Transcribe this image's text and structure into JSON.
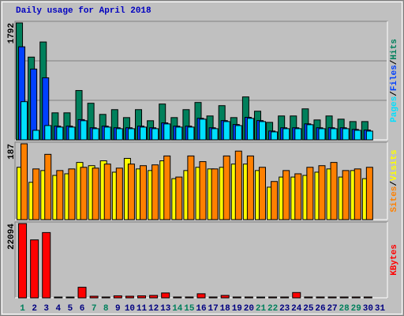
{
  "chart_data": [
    {
      "type": "bar",
      "title": "Daily usage for April 2018",
      "legend_separator": "/",
      "categories": [
        "1",
        "2",
        "3",
        "4",
        "5",
        "6",
        "7",
        "8",
        "9",
        "10",
        "11",
        "12",
        "13",
        "14",
        "15",
        "16",
        "17",
        "18",
        "19",
        "20",
        "21",
        "22",
        "23",
        "24",
        "25",
        "26",
        "27",
        "28",
        "29",
        "30",
        "31"
      ],
      "category_colors": [
        "#00805c",
        "#000080",
        "#000080",
        "#000080",
        "#000080",
        "#000080",
        "#00805c",
        "#00805c",
        "#000080",
        "#000080",
        "#000080",
        "#000080",
        "#000080",
        "#00805c",
        "#00805c",
        "#000080",
        "#000080",
        "#000080",
        "#000080",
        "#000080",
        "#00805c",
        "#00805c",
        "#000080",
        "#000080",
        "#000080",
        "#000080",
        "#000080",
        "#00805c",
        "#00805c",
        "#000080",
        "#000080"
      ],
      "ylim": [
        0,
        1792
      ],
      "yticks": [
        1792
      ],
      "series": [
        {
          "name": "Hits",
          "color": "#00805c",
          "values": [
            1792,
            1268,
            1500,
            414,
            414,
            756,
            561,
            390,
            463,
            341,
            463,
            293,
            549,
            341,
            463,
            573,
            366,
            524,
            341,
            658,
            439,
            268,
            366,
            366,
            475,
            305,
            366,
            317,
            280,
            280,
            null
          ]
        },
        {
          "name": "Files",
          "color": "#0040ff",
          "values": [
            1426,
            1085,
            951,
            210,
            210,
            310,
            185,
            210,
            185,
            185,
            210,
            185,
            260,
            210,
            210,
            330,
            185,
            295,
            235,
            345,
            295,
            135,
            185,
            185,
            245,
            185,
            185,
            185,
            160,
            150,
            null
          ]
        },
        {
          "name": "Pages",
          "color": "#00e0ff",
          "values": [
            585,
            146,
            219,
            195,
            195,
            293,
            171,
            195,
            171,
            171,
            195,
            171,
            244,
            195,
            195,
            317,
            171,
            280,
            219,
            329,
            280,
            122,
            171,
            171,
            232,
            171,
            171,
            171,
            146,
            134,
            null
          ]
        }
      ]
    },
    {
      "type": "bar",
      "legend_separator": "/",
      "ylim": [
        0,
        187
      ],
      "yticks": [
        187
      ],
      "series": [
        {
          "name": "Visits",
          "color": "#ffff00",
          "values": [
            129,
            92,
            121,
            109,
            113,
            141,
            133,
            145,
            117,
            151,
            125,
            121,
            145,
            101,
            121,
            129,
            125,
            129,
            137,
            137,
            121,
            80,
            105,
            105,
            109,
            117,
            125,
            105,
            121,
            101,
            null
          ]
        },
        {
          "name": "Sites",
          "color": "#ff8000",
          "values": [
            187,
            125,
            161,
            121,
            125,
            129,
            127,
            137,
            127,
            137,
            133,
            135,
            157,
            105,
            157,
            143,
            125,
            157,
            169,
            157,
            129,
            94,
            121,
            113,
            129,
            133,
            141,
            121,
            125,
            129,
            null
          ]
        }
      ]
    },
    {
      "type": "bar",
      "ylim": [
        0,
        22094
      ],
      "yticks": [
        22094
      ],
      "series": [
        {
          "name": "KBytes",
          "color": "#ff0000",
          "values": [
            22094,
            17240,
            19420,
            0,
            0,
            3150,
            480,
            250,
            600,
            480,
            600,
            720,
            1450,
            250,
            250,
            1210,
            250,
            720,
            250,
            250,
            0,
            250,
            250,
            1580,
            250,
            250,
            250,
            250,
            250,
            250,
            null
          ]
        }
      ]
    }
  ]
}
